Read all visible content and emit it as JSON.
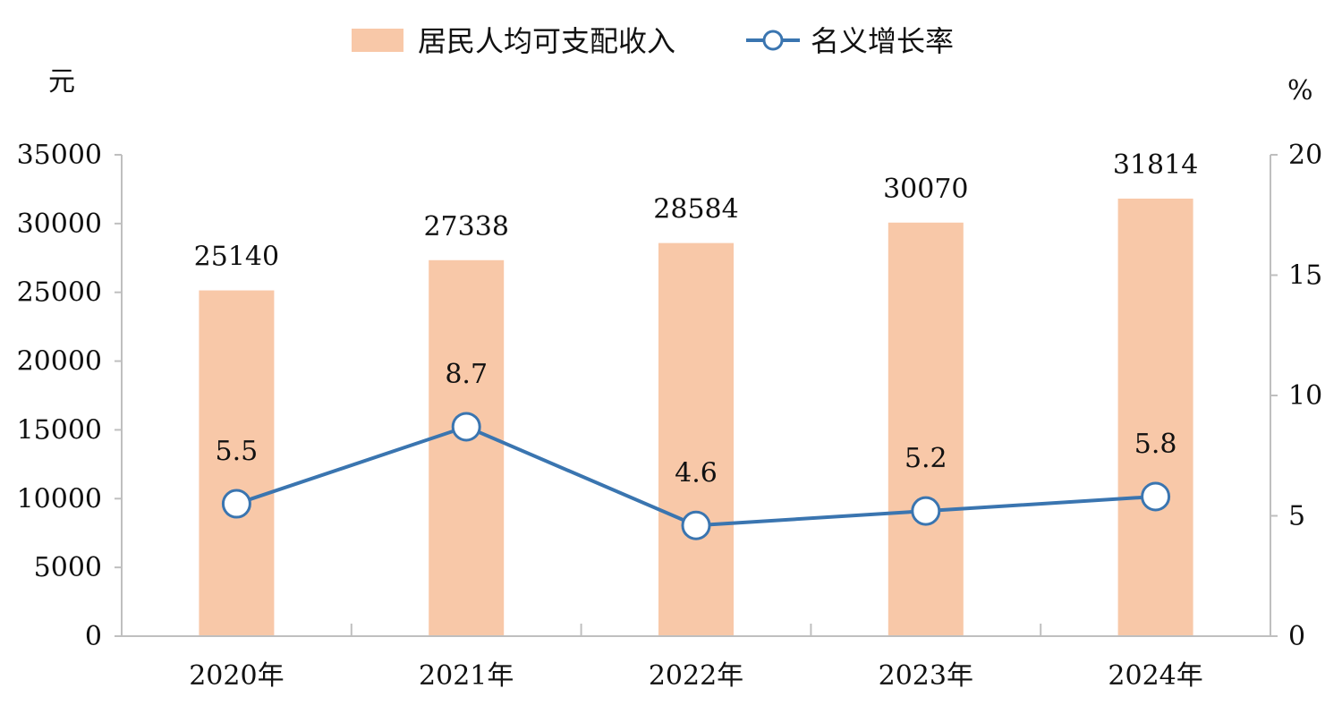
{
  "chart_data": {
    "type": "bar",
    "categories": [
      "2020年",
      "2021年",
      "2022年",
      "2023年",
      "2024年"
    ],
    "series": [
      {
        "name": "居民人均可支配收入",
        "type": "bar",
        "axis": "left",
        "values": [
          25140,
          27338,
          28584,
          30070,
          31814
        ],
        "color": "#F8C8A8"
      },
      {
        "name": "名义增长率",
        "type": "line",
        "axis": "right",
        "values": [
          5.5,
          8.7,
          4.6,
          5.2,
          5.8
        ],
        "value_labels": [
          "5.5",
          "8.7",
          "4.6",
          "5.2",
          "5.8"
        ],
        "color": "#3A75B0"
      }
    ],
    "bar_value_labels": [
      "25140",
      "27338",
      "28584",
      "30070",
      "31814"
    ],
    "y_left": {
      "unit": "元",
      "ylim": [
        0,
        35000
      ],
      "ticks": [
        0,
        5000,
        10000,
        15000,
        20000,
        25000,
        30000,
        35000
      ],
      "tick_labels": [
        "0",
        "5000",
        "10000",
        "15000",
        "20000",
        "25000",
        "30000",
        "35000"
      ]
    },
    "y_right": {
      "unit": "%",
      "ylim": [
        0,
        20
      ],
      "ticks": [
        0,
        5,
        10,
        15,
        20
      ],
      "tick_labels": [
        "0",
        "5",
        "10",
        "15",
        "20"
      ]
    },
    "grid": false,
    "legend_position": "top-center",
    "axis_color": "#BFBFBF"
  }
}
